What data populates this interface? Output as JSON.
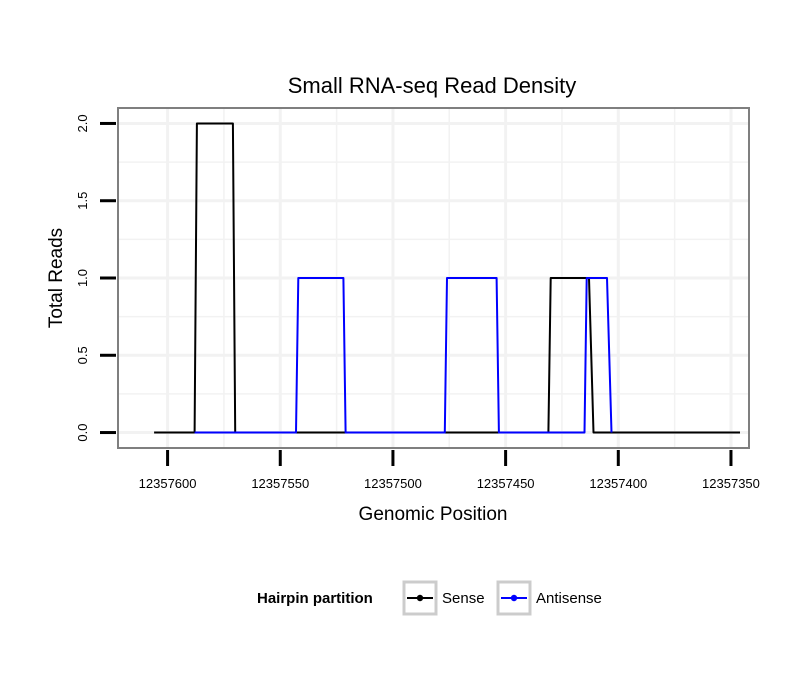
{
  "chart_data": {
    "type": "line",
    "title": "Small RNA-seq Read Density",
    "xlabel": "Genomic Position",
    "ylabel": "Total Reads",
    "x_reversed": true,
    "xlim": [
      12357622,
      12357342
    ],
    "ylim": [
      -0.1,
      2.1
    ],
    "x_ticks": [
      12357600,
      12357550,
      12357500,
      12357450,
      12357400,
      12357350
    ],
    "x_tick_labels": [
      "12357600",
      "12357550",
      "12357500",
      "12357450",
      "12357400",
      "12357350"
    ],
    "y_ticks": [
      0,
      0.5,
      1,
      1.5,
      2
    ],
    "y_tick_labels": [
      "0.0",
      "0.5",
      "1.0",
      "1.5",
      "2.0"
    ],
    "x_minor_gridlines": [
      12357575,
      12357525,
      12357475,
      12357425,
      12357375
    ],
    "y_minor_gridlines": [
      0.25,
      0.75,
      1.25,
      1.75
    ],
    "legend": {
      "title": "Hairpin partition",
      "placement": "bottom",
      "entries": [
        {
          "name": "Sense",
          "color": "#000000"
        },
        {
          "name": "Antisense",
          "color": "#0000ff"
        }
      ]
    },
    "series": [
      {
        "name": "Sense",
        "color": "#000000",
        "x": [
          12357606,
          12357588,
          12357587,
          12357571,
          12357570,
          12357480,
          12357480,
          12357431,
          12357430,
          12357413,
          12357411,
          12357351,
          12357346
        ],
        "y": [
          0,
          0,
          2,
          2,
          0,
          0,
          0,
          0,
          1,
          1,
          0,
          0,
          0
        ]
      },
      {
        "name": "Antisense",
        "color": "#0000ff",
        "x": [
          12357588,
          12357571,
          12357570,
          12357543,
          12357542,
          12357522,
          12357521,
          12357477,
          12357476,
          12357454,
          12357453,
          12357415,
          12357414,
          12357405,
          12357403
        ],
        "y": [
          0,
          0,
          0,
          0,
          1,
          1,
          0,
          0,
          1,
          1,
          0,
          0,
          1,
          1,
          0
        ]
      }
    ]
  },
  "colors": {
    "panel_border": "#7f7f7f",
    "grid": "#f2f2f2",
    "legend_key_border": "#cccccc"
  }
}
